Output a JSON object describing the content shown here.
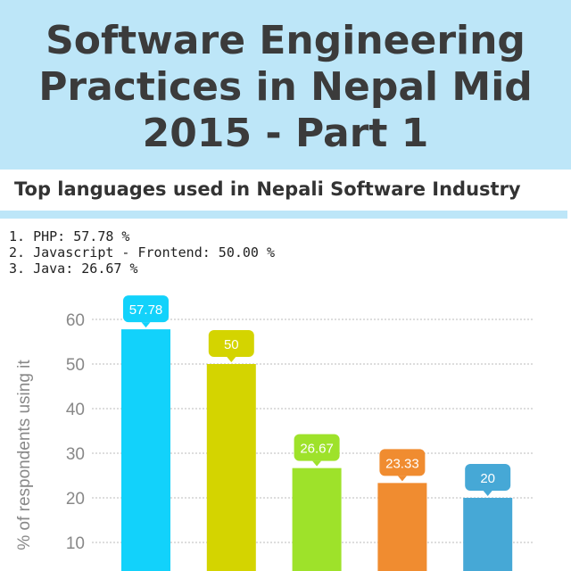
{
  "header": {
    "title_lines": [
      "Software Engineering",
      "Practices in Nepal Mid",
      "2015 - Part 1"
    ]
  },
  "section": {
    "title": "Top languages used in Nepali Software Industry",
    "top_list": [
      "1. PHP: 57.78 %",
      "2. Javascript - Frontend: 50.00 %",
      "3. Java: 26.67 %"
    ]
  },
  "colors": {
    "header_bg": "#bde6f8",
    "title_text": "#3b3b3b"
  },
  "chart_data": {
    "type": "bar",
    "ylabel": "% of respondents using it",
    "yticks": [
      10,
      20,
      30,
      40,
      50,
      60
    ],
    "ylim": [
      0,
      60
    ],
    "grid": true,
    "values": [
      57.78,
      50,
      26.67,
      23.33,
      20
    ],
    "value_labels": [
      "57.78",
      "50",
      "26.67",
      "23.33",
      "20"
    ],
    "colors": [
      "#12d2fb",
      "#d4d400",
      "#9ee22a",
      "#f08c30",
      "#46a8d6"
    ]
  }
}
